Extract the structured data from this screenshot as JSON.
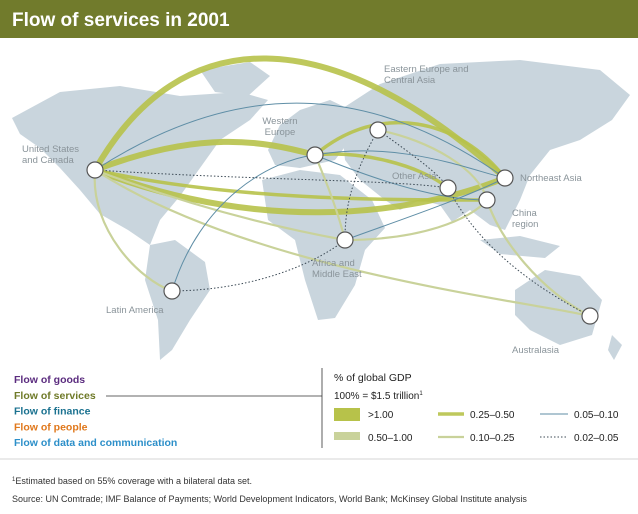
{
  "header": {
    "title": "Flow of services in 2001"
  },
  "regions": [
    {
      "lines": [
        "United States",
        "and Canada"
      ]
    },
    {
      "lines": [
        "Western",
        "Europe"
      ]
    },
    {
      "lines": [
        "Eastern Europe and",
        "Central Asia"
      ]
    },
    {
      "lines": [
        "Other Asia"
      ]
    },
    {
      "lines": [
        "Northeast Asia"
      ]
    },
    {
      "lines": [
        "China",
        "region"
      ]
    },
    {
      "lines": [
        "Africa and",
        "Middle East"
      ]
    },
    {
      "lines": [
        "Latin America"
      ]
    },
    {
      "lines": [
        "Australasia"
      ]
    }
  ],
  "flows": [
    {
      "label": "Flow of goods",
      "color": "#5b2c7f"
    },
    {
      "label": "Flow of services",
      "color": "#6f7a28"
    },
    {
      "label": "Flow of finance",
      "color": "#1b7290"
    },
    {
      "label": "Flow of people",
      "color": "#e0781c"
    },
    {
      "label": "Flow of data and communication",
      "color": "#2c8fc9"
    }
  ],
  "legend": {
    "title": "% of global GDP",
    "basis": "100% = $1.5 trillion",
    "basis_note": "1",
    "items": [
      ">1.00",
      "0.50–1.00",
      "0.25–0.50",
      "0.10–0.25",
      "0.05–0.10",
      "0.02–0.05"
    ]
  },
  "footnote": {
    "mark": "1",
    "text": "Estimated based on 55% coverage with a bilateral data set."
  },
  "source": "Source: UN Comtrade; IMF Balance of Payments; World Development Indicators, World Bank; McKinsey Global Institute analysis"
}
